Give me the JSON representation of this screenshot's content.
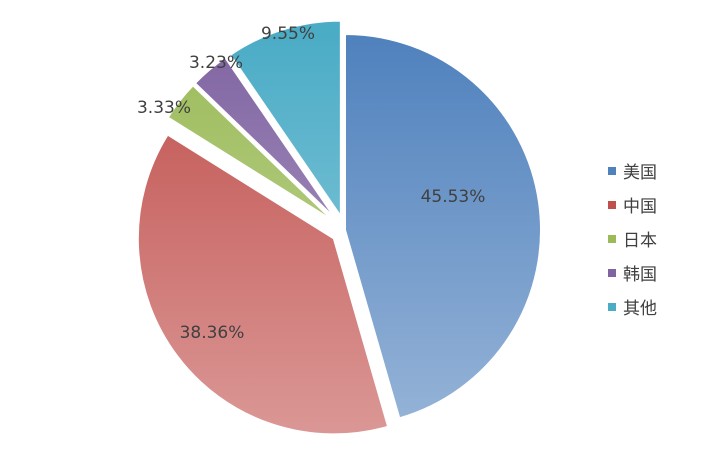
{
  "chart_data": {
    "type": "pie",
    "title": "",
    "legend_position": "right",
    "slices": [
      {
        "name": "美国",
        "value": 45.53,
        "label": "45.53%",
        "color": "#4F81BD",
        "color_light": "#95B3D7",
        "exploded": false
      },
      {
        "name": "中国",
        "value": 38.36,
        "label": "38.36%",
        "color": "#C0504D",
        "color_light": "#DA9694",
        "exploded": true
      },
      {
        "name": "日本",
        "value": 3.33,
        "label": "3.33%",
        "color": "#9BBB59",
        "color_light": "#C3D69B",
        "exploded": true
      },
      {
        "name": "韩国",
        "value": 3.23,
        "label": "3.23%",
        "color": "#8064A2",
        "color_light": "#B3A2C7",
        "exploded": true
      },
      {
        "name": "其他",
        "value": 9.55,
        "label": "9.55%",
        "color": "#4BACC6",
        "color_light": "#93CDDD",
        "exploded": true
      }
    ]
  }
}
